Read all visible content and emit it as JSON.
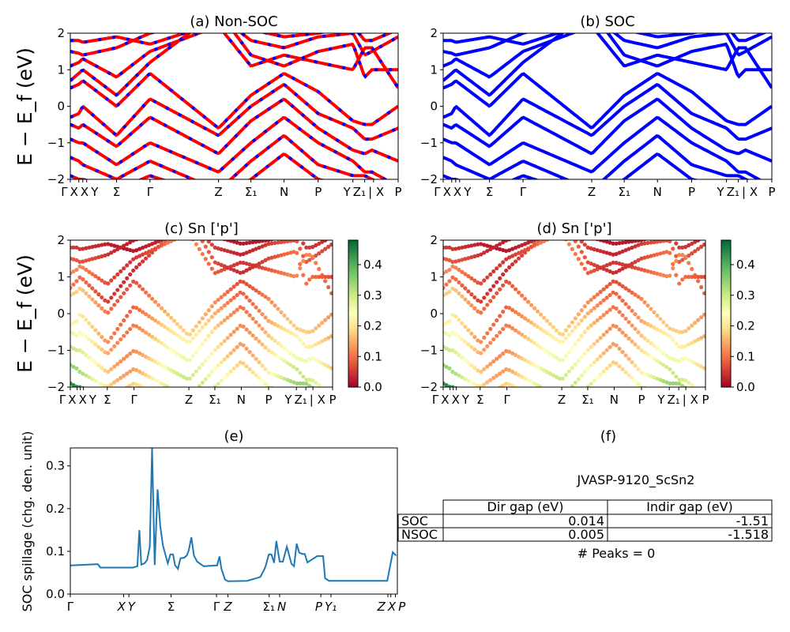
{
  "chart_data": [
    {
      "id": "a",
      "type": "line",
      "title": "(a) Non-SOC",
      "ylabel": "E − E_f (eV)",
      "ylim": [
        -2,
        2
      ],
      "yticks": [
        -2,
        -1,
        0,
        1,
        2
      ],
      "colors": {
        "line": "#ff0000",
        "dash": "#0000ff"
      }
    },
    {
      "id": "b",
      "type": "line",
      "title": "(b) SOC",
      "ylabel": "",
      "ylim": [
        -2,
        2
      ],
      "yticks": [
        -2,
        -1,
        0,
        1,
        2
      ],
      "colors": {
        "line": "#0000ff"
      }
    },
    {
      "id": "c",
      "type": "scatter",
      "title": "(c)  Sn ['p']",
      "ylabel": "E − E_f (eV)",
      "ylim": [
        -2,
        2
      ],
      "yticks": [
        -2,
        -1,
        0,
        1,
        2
      ],
      "colorbar": {
        "colormap": "RdYlGn",
        "range": [
          0,
          0.48
        ],
        "ticks": [
          "0.0",
          "0.1",
          "0.2",
          "0.3",
          "0.4"
        ]
      }
    },
    {
      "id": "d",
      "type": "scatter",
      "title": "(d) Sn ['p']",
      "ylabel": "",
      "ylim": [
        -2,
        2
      ],
      "yticks": [
        -2,
        -1,
        0,
        1,
        2
      ],
      "colorbar": {
        "colormap": "RdYlGn",
        "range": [
          0,
          0.48
        ],
        "ticks": [
          "0.0",
          "0.1",
          "0.2",
          "0.3",
          "0.4"
        ]
      }
    },
    {
      "id": "e",
      "type": "line",
      "title": "(e)",
      "ylabel": "SOC spillage (chg. den. unit)",
      "ylim": [
        0,
        0.342
      ],
      "yticks": [
        "0.0",
        "0.1",
        "0.2",
        "0.3"
      ],
      "color": "#1f77b4",
      "xticks": [
        {
          "k": 0,
          "label": "Γ"
        },
        {
          "k": 16.3,
          "label": "X"
        },
        {
          "k": 17.9,
          "label": "Y"
        },
        {
          "k": 30.8,
          "label": "Σ"
        },
        {
          "k": 44.7,
          "label": "Γ"
        },
        {
          "k": 48.2,
          "label": "Z"
        },
        {
          "k": 60.8,
          "label": "Σ₁"
        },
        {
          "k": 64.0,
          "label": "N"
        },
        {
          "k": 76.6,
          "label": "P"
        },
        {
          "k": 79.7,
          "label": "Y₁"
        },
        {
          "k": 97.1,
          "label": "Z"
        },
        {
          "k": 98.0,
          "label": "X"
        },
        {
          "k": 99.4,
          "label": "P"
        }
      ],
      "x": [
        0,
        8.4,
        9.2,
        19.1,
        20.5,
        21.1,
        21.7,
        22.7,
        23.5,
        24.3,
        25.0,
        25.8,
        26.7,
        27.5,
        28.3,
        29.8,
        30.6,
        31.4,
        32.0,
        32.9,
        33.7,
        34.8,
        35.6,
        36.2,
        37.0,
        37.8,
        38.8,
        40.8,
        44.4,
        44.9,
        45.6,
        46.2,
        47.3,
        48.2,
        54.1,
        58.1,
        59.2,
        59.7,
        60.7,
        61.5,
        62.3,
        63.0,
        64.0,
        65.0,
        66.2,
        67.6,
        68.4,
        69.2,
        70.0,
        70.9,
        71.7,
        72.5,
        75.5,
        77.3,
        77.9,
        79.1,
        96.9,
        98.6,
        99.6
      ],
      "y": [
        0.067,
        0.07,
        0.062,
        0.062,
        0.065,
        0.15,
        0.069,
        0.072,
        0.08,
        0.111,
        0.342,
        0.068,
        0.245,
        0.16,
        0.114,
        0.072,
        0.093,
        0.093,
        0.068,
        0.059,
        0.084,
        0.085,
        0.09,
        0.102,
        0.133,
        0.09,
        0.076,
        0.065,
        0.067,
        0.067,
        0.088,
        0.059,
        0.034,
        0.03,
        0.031,
        0.04,
        0.056,
        0.065,
        0.093,
        0.093,
        0.073,
        0.124,
        0.076,
        0.076,
        0.111,
        0.071,
        0.065,
        0.118,
        0.097,
        0.094,
        0.094,
        0.074,
        0.089,
        0.089,
        0.037,
        0.031,
        0.031,
        0.098,
        0.09
      ]
    }
  ],
  "band_path": {
    "nodes": [
      0,
      2.6,
      3.8,
      14.1,
      24.3,
      45.2,
      55.1,
      65.2,
      75.6,
      86.2,
      89.8,
      92,
      100
    ],
    "tick_labels": [
      "Γ",
      "X",
      "X",
      "Y",
      "Σ",
      "Γ",
      "Z",
      "Σ₁",
      "N",
      "P",
      "Y",
      "Z₁",
      "| X",
      "P"
    ],
    "tick_k": [
      0,
      2.6,
      3.8,
      5.0,
      14.1,
      24.3,
      45.2,
      55.1,
      65.2,
      75.6,
      86.2,
      89.8,
      92.5,
      100
    ],
    "bands": [
      {
        "E": [
          1.8,
          1.8,
          1.75,
          1.9,
          1.7,
          2.3,
          2.1,
          1.9,
          2.0,
          2.2,
          1.8,
          1.8,
          2.1
        ],
        "w": 0.05
      },
      {
        "E": [
          1.5,
          1.45,
          1.4,
          1.6,
          2.0,
          2.5,
          1.8,
          1.6,
          1.9,
          2.0,
          1.4,
          1.5,
          1.9
        ],
        "w": 0.08
      },
      {
        "E": [
          1.1,
          1.2,
          1.3,
          0.8,
          1.5,
          2.2,
          1.1,
          1.4,
          1.2,
          1.0,
          1.6,
          1.6,
          0.5
        ],
        "w": 0.12
      },
      {
        "E": [
          0.7,
          0.9,
          1.0,
          0.3,
          1.2,
          2.6,
          1.4,
          1.1,
          1.5,
          1.7,
          0.8,
          1.0,
          1.0
        ],
        "w": 0.1
      },
      {
        "E": [
          0.5,
          0.6,
          0.7,
          0.0,
          0.9,
          -0.6,
          0.3,
          0.9,
          0.4,
          -0.4,
          -0.5,
          -0.5,
          0.0
        ],
        "w": 0.18
      },
      {
        "E": [
          -0.3,
          -0.2,
          0.0,
          -0.8,
          0.2,
          -0.8,
          0.0,
          0.6,
          -0.2,
          -0.6,
          -0.9,
          -0.9,
          -0.6
        ],
        "w": 0.22
      },
      {
        "E": [
          -0.5,
          -0.6,
          -0.5,
          -1.1,
          -0.3,
          -1.3,
          -0.4,
          0.2,
          -0.6,
          -1.2,
          -1.3,
          -1.2,
          -1.5
        ],
        "w": 0.26
      },
      {
        "E": [
          -0.9,
          -1.0,
          -1.0,
          -1.6,
          -1.0,
          -1.8,
          -1.0,
          -0.3,
          -1.0,
          -1.5,
          -1.8,
          -1.8,
          -2.2
        ],
        "w": 0.3
      },
      {
        "E": [
          -1.4,
          -1.5,
          -1.6,
          -2.0,
          -1.5,
          -2.3,
          -1.5,
          -0.8,
          -1.6,
          -1.9,
          -1.9,
          -2.0,
          -2.3
        ],
        "w": 0.34
      },
      {
        "E": [
          -1.9,
          -2.0,
          -2.0,
          -2.3,
          -1.9,
          -2.5,
          -2.0,
          -1.3,
          -2.0,
          -2.2,
          -2.2,
          -2.3,
          -2.5
        ],
        "w": 0.44
      }
    ]
  },
  "info": {
    "title": "(f)",
    "material": "JVASP-9120_ScSn2",
    "columns": [
      "Dir gap (eV)",
      "Indir gap (eV)"
    ],
    "rows": [
      {
        "label": "SOC",
        "dir": "0.014",
        "indir": "-1.51"
      },
      {
        "label": "NSOC",
        "dir": "0.005",
        "indir": "-1.518"
      }
    ],
    "peaks": "# Peaks = 0"
  }
}
